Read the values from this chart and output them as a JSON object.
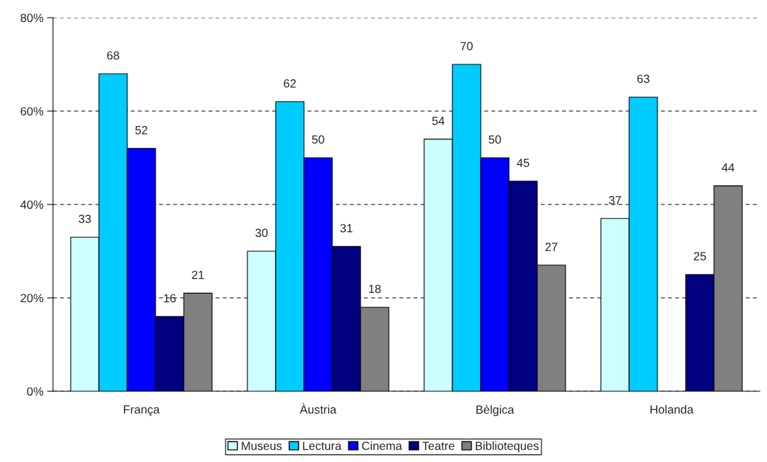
{
  "chart_data": {
    "type": "bar",
    "categories": [
      "França",
      "Àustria",
      "Bèlgica",
      "Holanda"
    ],
    "series": [
      {
        "name": "Museus",
        "color": "#ccffff",
        "values": [
          33,
          30,
          54,
          37
        ]
      },
      {
        "name": "Lectura",
        "color": "#00ccff",
        "values": [
          68,
          62,
          70,
          63
        ]
      },
      {
        "name": "Cinema",
        "color": "#0000ff",
        "values": [
          52,
          50,
          50,
          null
        ]
      },
      {
        "name": "Teatre",
        "color": "#000080",
        "values": [
          16,
          31,
          45,
          25
        ]
      },
      {
        "name": "Biblioteques",
        "color": "#808080",
        "values": [
          21,
          18,
          27,
          44
        ]
      }
    ],
    "ylim": [
      0,
      80
    ],
    "yticks": [
      {
        "value": 0,
        "label": "0%"
      },
      {
        "value": 20,
        "label": "20%"
      },
      {
        "value": 40,
        "label": "40%"
      },
      {
        "value": 60,
        "label": "60%"
      },
      {
        "value": 80,
        "label": "80%"
      }
    ],
    "grid": "y",
    "legend": "bottom",
    "data_labels": true
  }
}
